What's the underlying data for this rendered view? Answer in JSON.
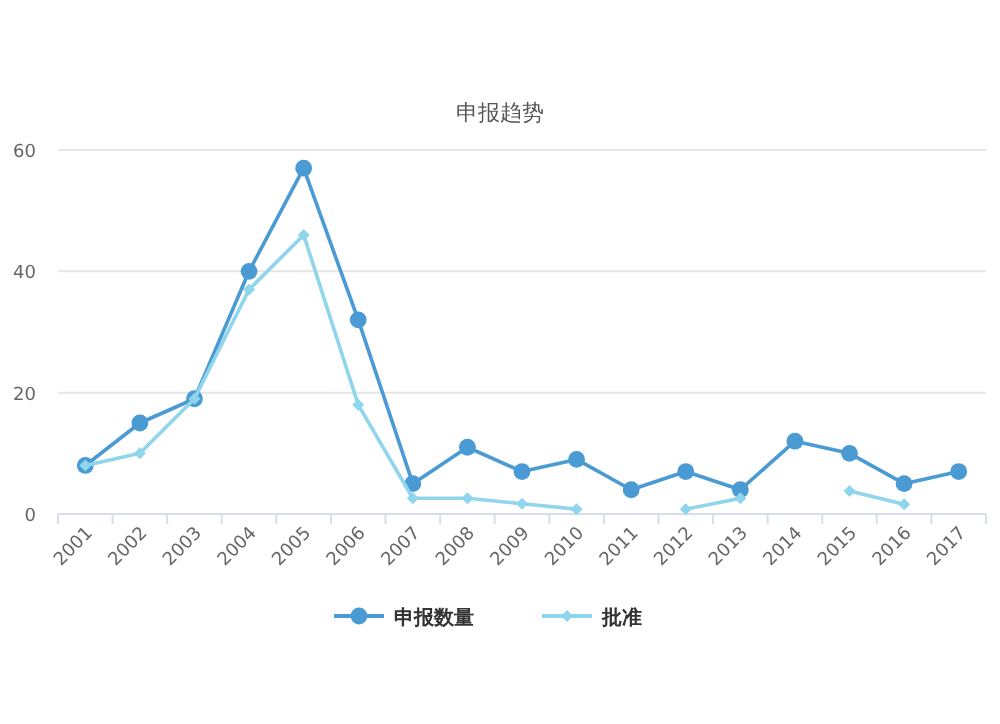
{
  "chart_data": {
    "type": "line",
    "title": "申报趋势",
    "categories": [
      "2001",
      "2002",
      "2003",
      "2004",
      "2005",
      "2006",
      "2007",
      "2008",
      "2009",
      "2010",
      "2011",
      "2012",
      "2013",
      "2014",
      "2015",
      "2016",
      "2017"
    ],
    "series": [
      {
        "name": "申报数量",
        "color": "#4a9ad4",
        "marker": "circle",
        "values": [
          8,
          15,
          19,
          40,
          57,
          32,
          5,
          11,
          7,
          9,
          4,
          7,
          4,
          12,
          10,
          5,
          7
        ]
      },
      {
        "name": "批准",
        "color": "#8fd5eb",
        "marker": "diamond",
        "values": [
          8,
          10,
          19,
          37,
          46,
          18,
          2.6,
          2.6,
          1.7,
          0.8,
          null,
          0.8,
          2.6,
          null,
          3.8,
          1.6,
          null
        ]
      }
    ],
    "ylim": [
      0,
      60
    ],
    "yticks": [
      0,
      20,
      40,
      60
    ],
    "grid": "y",
    "legend": "bottom"
  }
}
